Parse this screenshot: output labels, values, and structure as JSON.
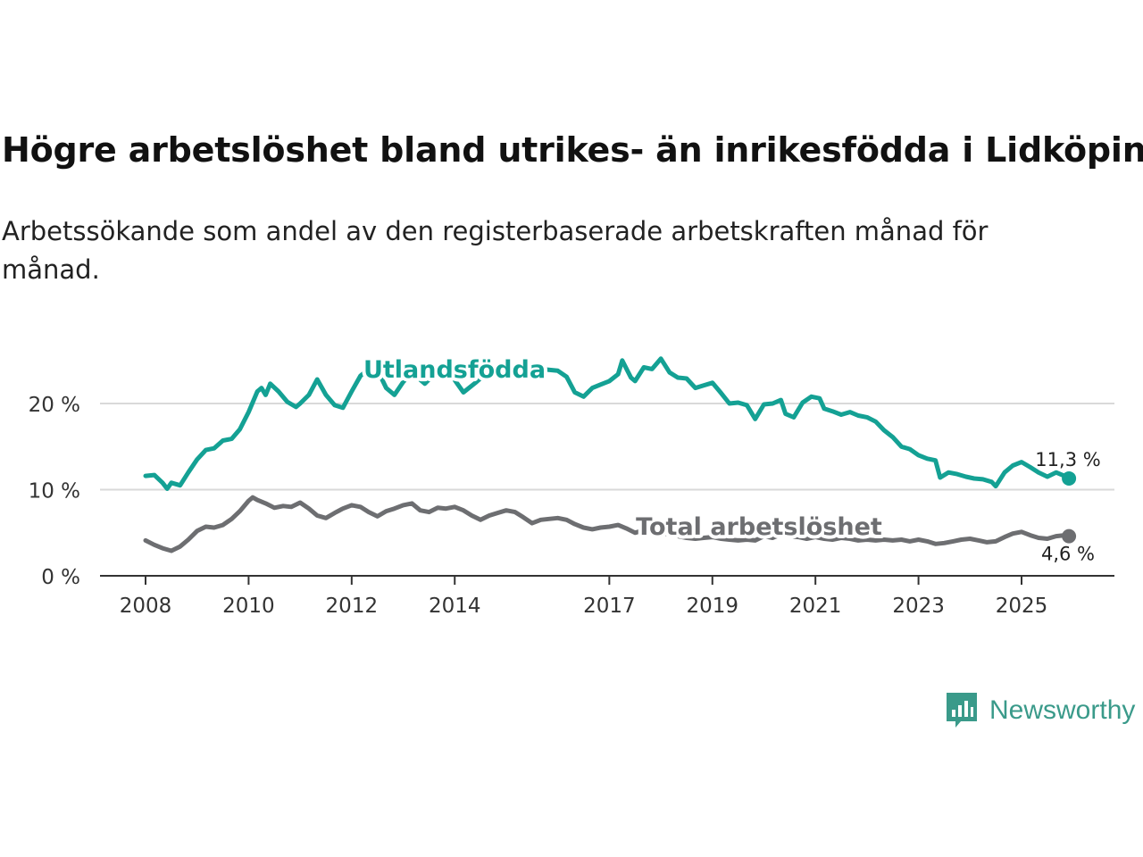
{
  "title": "Högre arbetslöshet bland utrikes- än inrikesfödda i Lidköping",
  "subtitle": "Arbetssökande som andel av den registerbaserade arbetskraften månad för månad.",
  "brand": {
    "name": "Newsworthy",
    "icon": "newsworthy-logo-icon",
    "color": "#3a9a8a"
  },
  "chart_data": {
    "type": "line",
    "title": "Högre arbetslöshet bland utrikes- än inrikesfödda i Lidköping",
    "xlabel": "",
    "ylabel": "",
    "xlim": [
      2008,
      2026
    ],
    "ylim": [
      0,
      20
    ],
    "x_ticks": [
      2008,
      2010,
      2012,
      2014,
      2017,
      2019,
      2021,
      2023,
      2025
    ],
    "y_ticks": [
      0,
      10,
      20
    ],
    "y_tick_labels": [
      "0 %",
      "10 %",
      "20 %"
    ],
    "grid": true,
    "series": [
      {
        "name": "Utlandsfödda",
        "color": "#14a194",
        "end_label": "11,3 %",
        "points": [
          [
            2008.0,
            11.6
          ],
          [
            2008.17,
            11.7
          ],
          [
            2008.33,
            10.8
          ],
          [
            2008.42,
            10.1
          ],
          [
            2008.5,
            10.8
          ],
          [
            2008.67,
            10.5
          ],
          [
            2008.83,
            12.0
          ],
          [
            2009.0,
            13.5
          ],
          [
            2009.17,
            14.6
          ],
          [
            2009.33,
            14.8
          ],
          [
            2009.5,
            15.7
          ],
          [
            2009.67,
            15.9
          ],
          [
            2009.83,
            17.0
          ],
          [
            2010.0,
            19.0
          ],
          [
            2010.17,
            21.4
          ],
          [
            2010.25,
            21.8
          ],
          [
            2010.33,
            21.0
          ],
          [
            2010.42,
            22.3
          ],
          [
            2010.58,
            21.4
          ],
          [
            2010.75,
            20.2
          ],
          [
            2010.92,
            19.6
          ],
          [
            2011.0,
            20.0
          ],
          [
            2011.17,
            21.0
          ],
          [
            2011.33,
            22.8
          ],
          [
            2011.5,
            21.0
          ],
          [
            2011.67,
            19.8
          ],
          [
            2011.83,
            19.5
          ],
          [
            2012.0,
            21.4
          ],
          [
            2012.17,
            23.2
          ],
          [
            2012.33,
            24.0
          ],
          [
            2012.5,
            23.9
          ],
          [
            2012.67,
            21.8
          ],
          [
            2012.83,
            21.0
          ],
          [
            2013.0,
            22.5
          ],
          [
            2013.17,
            23.6
          ],
          [
            2013.42,
            22.3
          ],
          [
            2013.67,
            23.8
          ],
          [
            2013.92,
            23.4
          ],
          [
            2014.17,
            21.3
          ],
          [
            2014.42,
            22.5
          ],
          [
            2014.67,
            23.8
          ],
          [
            2015.0,
            24.2
          ],
          [
            2015.33,
            24.4
          ],
          [
            2015.67,
            24.0
          ],
          [
            2016.0,
            23.8
          ],
          [
            2016.17,
            23.1
          ],
          [
            2016.33,
            21.3
          ],
          [
            2016.5,
            20.8
          ],
          [
            2016.67,
            21.8
          ],
          [
            2016.83,
            22.2
          ],
          [
            2017.0,
            22.6
          ],
          [
            2017.17,
            23.4
          ],
          [
            2017.25,
            25.0
          ],
          [
            2017.42,
            23.0
          ],
          [
            2017.5,
            22.6
          ],
          [
            2017.67,
            24.2
          ],
          [
            2017.83,
            24.0
          ],
          [
            2018.0,
            25.2
          ],
          [
            2018.17,
            23.6
          ],
          [
            2018.33,
            23.0
          ],
          [
            2018.5,
            22.9
          ],
          [
            2018.67,
            21.8
          ],
          [
            2018.83,
            22.1
          ],
          [
            2019.0,
            22.4
          ],
          [
            2019.17,
            21.2
          ],
          [
            2019.33,
            20.0
          ],
          [
            2019.5,
            20.1
          ],
          [
            2019.67,
            19.8
          ],
          [
            2019.83,
            18.2
          ],
          [
            2020.0,
            19.9
          ],
          [
            2020.17,
            20.0
          ],
          [
            2020.33,
            20.4
          ],
          [
            2020.42,
            18.8
          ],
          [
            2020.58,
            18.4
          ],
          [
            2020.75,
            20.1
          ],
          [
            2020.92,
            20.8
          ],
          [
            2021.08,
            20.6
          ],
          [
            2021.17,
            19.4
          ],
          [
            2021.33,
            19.1
          ],
          [
            2021.5,
            18.7
          ],
          [
            2021.67,
            19.0
          ],
          [
            2021.83,
            18.6
          ],
          [
            2022.0,
            18.4
          ],
          [
            2022.17,
            17.9
          ],
          [
            2022.33,
            16.9
          ],
          [
            2022.5,
            16.1
          ],
          [
            2022.67,
            15.0
          ],
          [
            2022.83,
            14.7
          ],
          [
            2023.0,
            14.0
          ],
          [
            2023.17,
            13.6
          ],
          [
            2023.33,
            13.4
          ],
          [
            2023.42,
            11.4
          ],
          [
            2023.58,
            12.0
          ],
          [
            2023.75,
            11.8
          ],
          [
            2023.92,
            11.5
          ],
          [
            2024.08,
            11.3
          ],
          [
            2024.25,
            11.2
          ],
          [
            2024.42,
            10.9
          ],
          [
            2024.5,
            10.4
          ],
          [
            2024.67,
            12.0
          ],
          [
            2024.83,
            12.8
          ],
          [
            2025.0,
            13.2
          ],
          [
            2025.17,
            12.6
          ],
          [
            2025.33,
            12.0
          ],
          [
            2025.5,
            11.5
          ],
          [
            2025.67,
            12.0
          ],
          [
            2025.83,
            11.6
          ],
          [
            2025.92,
            11.3
          ]
        ]
      },
      {
        "name": "Total arbetslöshet",
        "color": "#6d6e71",
        "end_label": "4,6 %",
        "points": [
          [
            2008.0,
            4.1
          ],
          [
            2008.17,
            3.6
          ],
          [
            2008.33,
            3.2
          ],
          [
            2008.5,
            2.9
          ],
          [
            2008.67,
            3.4
          ],
          [
            2008.83,
            4.2
          ],
          [
            2009.0,
            5.2
          ],
          [
            2009.17,
            5.7
          ],
          [
            2009.33,
            5.6
          ],
          [
            2009.5,
            5.9
          ],
          [
            2009.67,
            6.6
          ],
          [
            2009.83,
            7.5
          ],
          [
            2010.0,
            8.7
          ],
          [
            2010.08,
            9.1
          ],
          [
            2010.17,
            8.8
          ],
          [
            2010.33,
            8.4
          ],
          [
            2010.5,
            7.9
          ],
          [
            2010.67,
            8.1
          ],
          [
            2010.83,
            8.0
          ],
          [
            2011.0,
            8.5
          ],
          [
            2011.17,
            7.8
          ],
          [
            2011.33,
            7.0
          ],
          [
            2011.5,
            6.7
          ],
          [
            2011.67,
            7.3
          ],
          [
            2011.83,
            7.8
          ],
          [
            2012.0,
            8.2
          ],
          [
            2012.17,
            8.0
          ],
          [
            2012.33,
            7.4
          ],
          [
            2012.5,
            6.9
          ],
          [
            2012.67,
            7.5
          ],
          [
            2012.83,
            7.8
          ],
          [
            2013.0,
            8.2
          ],
          [
            2013.17,
            8.4
          ],
          [
            2013.33,
            7.6
          ],
          [
            2013.5,
            7.4
          ],
          [
            2013.67,
            7.9
          ],
          [
            2013.83,
            7.8
          ],
          [
            2014.0,
            8.0
          ],
          [
            2014.17,
            7.6
          ],
          [
            2014.33,
            7.0
          ],
          [
            2014.5,
            6.5
          ],
          [
            2014.67,
            7.0
          ],
          [
            2014.83,
            7.3
          ],
          [
            2015.0,
            7.6
          ],
          [
            2015.17,
            7.4
          ],
          [
            2015.33,
            6.8
          ],
          [
            2015.5,
            6.1
          ],
          [
            2015.67,
            6.5
          ],
          [
            2015.83,
            6.6
          ],
          [
            2016.0,
            6.7
          ],
          [
            2016.17,
            6.5
          ],
          [
            2016.33,
            6.0
          ],
          [
            2016.5,
            5.6
          ],
          [
            2016.67,
            5.4
          ],
          [
            2016.83,
            5.6
          ],
          [
            2017.0,
            5.7
          ],
          [
            2017.17,
            5.9
          ],
          [
            2017.33,
            5.5
          ],
          [
            2017.5,
            5.0
          ],
          [
            2017.67,
            5.3
          ],
          [
            2017.83,
            5.1
          ],
          [
            2018.0,
            5.0
          ],
          [
            2018.17,
            4.8
          ],
          [
            2018.33,
            4.6
          ],
          [
            2018.5,
            4.4
          ],
          [
            2018.67,
            4.3
          ],
          [
            2018.83,
            4.4
          ],
          [
            2019.0,
            4.5
          ],
          [
            2019.17,
            4.3
          ],
          [
            2019.33,
            4.2
          ],
          [
            2019.5,
            4.1
          ],
          [
            2019.67,
            4.2
          ],
          [
            2019.83,
            4.1
          ],
          [
            2020.0,
            4.6
          ],
          [
            2020.17,
            4.4
          ],
          [
            2020.33,
            4.8
          ],
          [
            2020.5,
            4.6
          ],
          [
            2020.67,
            4.5
          ],
          [
            2020.83,
            4.3
          ],
          [
            2021.0,
            4.5
          ],
          [
            2021.17,
            4.3
          ],
          [
            2021.33,
            4.2
          ],
          [
            2021.5,
            4.4
          ],
          [
            2021.67,
            4.3
          ],
          [
            2021.83,
            4.1
          ],
          [
            2022.0,
            4.2
          ],
          [
            2022.17,
            4.1
          ],
          [
            2022.33,
            4.2
          ],
          [
            2022.5,
            4.1
          ],
          [
            2022.67,
            4.2
          ],
          [
            2022.83,
            4.0
          ],
          [
            2023.0,
            4.2
          ],
          [
            2023.17,
            4.0
          ],
          [
            2023.33,
            3.7
          ],
          [
            2023.5,
            3.8
          ],
          [
            2023.67,
            4.0
          ],
          [
            2023.83,
            4.2
          ],
          [
            2024.0,
            4.3
          ],
          [
            2024.17,
            4.1
          ],
          [
            2024.33,
            3.9
          ],
          [
            2024.5,
            4.0
          ],
          [
            2024.67,
            4.5
          ],
          [
            2024.83,
            4.9
          ],
          [
            2025.0,
            5.1
          ],
          [
            2025.17,
            4.7
          ],
          [
            2025.33,
            4.4
          ],
          [
            2025.5,
            4.3
          ],
          [
            2025.67,
            4.6
          ],
          [
            2025.83,
            4.7
          ],
          [
            2025.92,
            4.6
          ]
        ]
      }
    ]
  }
}
